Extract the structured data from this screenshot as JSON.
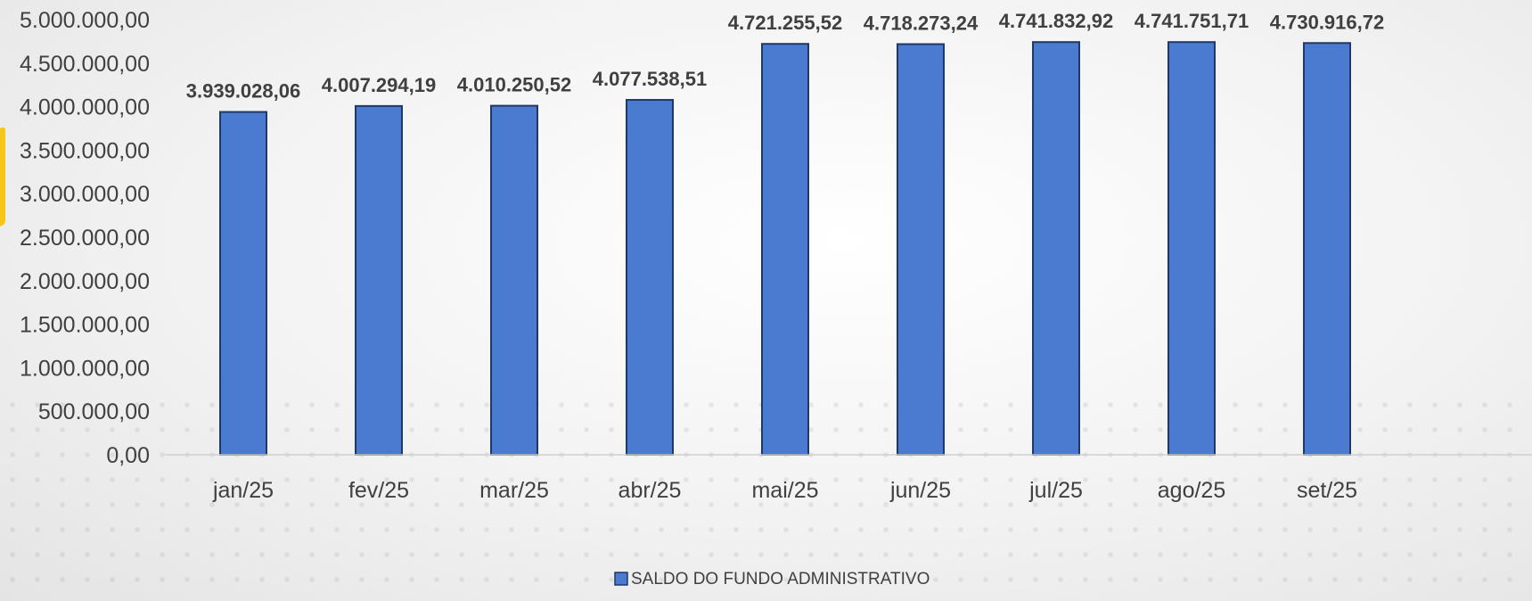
{
  "chart_data": {
    "type": "bar",
    "categories": [
      "jan/25",
      "fev/25",
      "mar/25",
      "abr/25",
      "mai/25",
      "jun/25",
      "jul/25",
      "ago/25",
      "set/25"
    ],
    "series": [
      {
        "name": "SALDO DO FUNDO ADMINISTRATIVO",
        "values": [
          3939028.06,
          4007294.19,
          4010250.52,
          4077538.51,
          4721255.52,
          4718273.24,
          4741832.92,
          4741751.71,
          4730916.72
        ],
        "labels": [
          "3.939.028,06",
          "4.007.294,19",
          "4.010.250,52",
          "4.077.538,51",
          "4.721.255,52",
          "4.718.273,24",
          "4.741.832,92",
          "4.741.751,71",
          "4.730.916,72"
        ]
      }
    ],
    "y_ticks": [
      "0,00",
      "500.000,00",
      "1.000.000,00",
      "1.500.000,00",
      "2.000.000,00",
      "2.500.000,00",
      "3.000.000,00",
      "3.500.000,00",
      "4.000.000,00",
      "4.500.000,00",
      "5.000.000,00"
    ],
    "ylim": [
      0,
      5000000
    ],
    "grid": false,
    "legend_position": "bottom",
    "title": "",
    "xlabel": "",
    "ylabel": "",
    "colors": {
      "bar": "#4a7bd0",
      "bar_edge": "#1f3864",
      "label": "#404040",
      "axis_text": "#404040"
    }
  }
}
